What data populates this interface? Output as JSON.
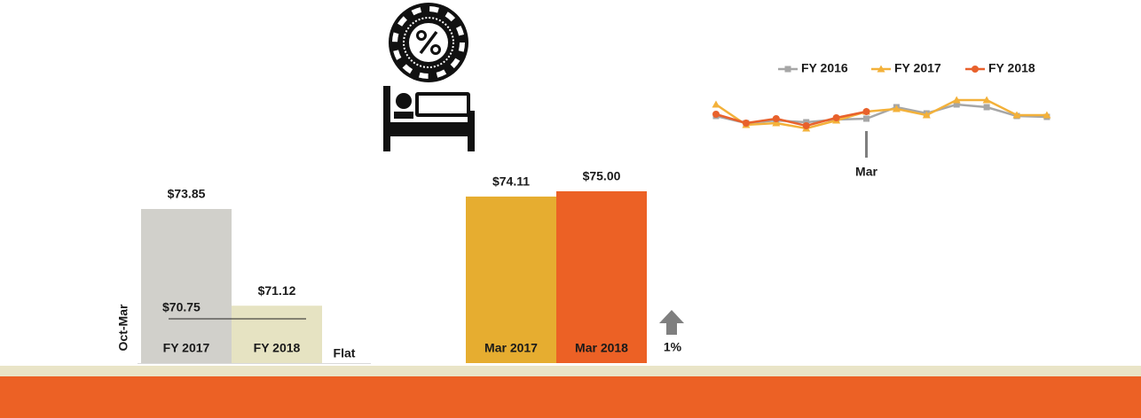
{
  "chart_data": [
    {
      "type": "bar",
      "categories": [
        "FY 2017",
        "FY 2018"
      ],
      "values": [
        73.85,
        71.12
      ],
      "value_labels": [
        "$73.85",
        "$71.12"
      ],
      "colors": [
        "#d1d0cb",
        "#e6e3c2"
      ],
      "ylim": [
        69.5,
        74
      ],
      "y_label": "Oct-Mar",
      "reference_line": {
        "value": 70.75,
        "label": "$70.75"
      },
      "annotation": "Flat"
    },
    {
      "type": "bar",
      "categories": [
        "Mar 2017",
        "Mar 2018"
      ],
      "values": [
        74.11,
        75.0
      ],
      "value_labels": [
        "$74.11",
        "$75.00"
      ],
      "colors": [
        "#e6ad30",
        "#ec6125"
      ],
      "ylim": [
        46,
        75
      ],
      "annotation": "1%"
    },
    {
      "type": "line",
      "categories": [
        null,
        null,
        null,
        null,
        null,
        "Mar",
        null,
        null,
        null,
        null,
        null,
        null
      ],
      "ylim": [
        70,
        76
      ],
      "legend": "top",
      "series": [
        {
          "name": "FY 2016",
          "color": "#a6a6a6",
          "marker": "square",
          "values": [
            72.9,
            72.1,
            72.4,
            72.2,
            72.5,
            72.6,
            73.9,
            73.2,
            74.2,
            73.9,
            72.9,
            72.8
          ]
        },
        {
          "name": "FY 2017",
          "color": "#f3b13a",
          "marker": "triangle",
          "values": [
            74.2,
            71.9,
            72.1,
            71.5,
            72.4,
            73.4,
            73.7,
            73.0,
            74.7,
            74.7,
            73.0,
            73.0
          ]
        },
        {
          "name": "FY 2018",
          "color": "#e8612c",
          "marker": "circle",
          "values": [
            73.1,
            72.1,
            72.6,
            71.8,
            72.7,
            73.4,
            null,
            null,
            null,
            null,
            null,
            null
          ]
        }
      ]
    }
  ]
}
